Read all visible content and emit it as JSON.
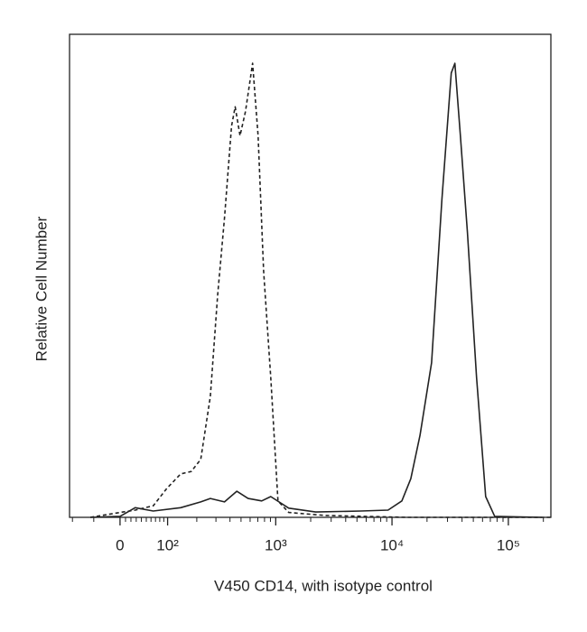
{
  "chart_data": {
    "type": "line",
    "xlabel": "V450 CD14, with isotype control",
    "ylabel": "Relative Cell Number",
    "xscale": "biexponential",
    "xlim": [
      -108,
      232000
    ],
    "xticks": [
      {
        "value": 0,
        "label": "0"
      },
      {
        "value": 100,
        "label": "10²"
      },
      {
        "value": 1000,
        "label": "10³"
      },
      {
        "value": 10000,
        "label": "10⁴"
      },
      {
        "value": 100000,
        "label": "10⁵"
      }
    ],
    "xminorticks": [
      -100,
      -50,
      10,
      20,
      30,
      40,
      50,
      60,
      70,
      80,
      90,
      200,
      300,
      400,
      500,
      600,
      700,
      800,
      900,
      2000,
      3000,
      4000,
      5000,
      6000,
      7000,
      8000,
      9000,
      20000,
      30000,
      40000,
      50000,
      60000,
      70000,
      80000,
      90000,
      200000
    ],
    "ylim": [
      0,
      100
    ],
    "series": [
      {
        "linestyle": "dashed",
        "color": "#222222",
        "x": [
          -57,
          0,
          28,
          65,
          98,
          139,
          177,
          218,
          267,
          311,
          358,
          413,
          444,
          490,
          547,
          630,
          704,
          785,
          905,
          1045,
          1295,
          2650,
          13290,
          232000
        ],
        "values": [
          0,
          1,
          1.5,
          2.4,
          6,
          9,
          9.5,
          12,
          25,
          46,
          62,
          81,
          85,
          79,
          84,
          94,
          79,
          51,
          29,
          3.4,
          1,
          0.4,
          0,
          0
        ]
      },
      {
        "linestyle": "solid",
        "color": "#222222",
        "x": [
          -57,
          0,
          28,
          65,
          139,
          218,
          267,
          358,
          459,
          576,
          756,
          905,
          1295,
          2206,
          5390,
          9250,
          12150,
          14500,
          17400,
          21900,
          26900,
          32300,
          34700,
          38700,
          44500,
          53300,
          63800,
          76400,
          193000
        ],
        "values": [
          0,
          0.2,
          2,
          1.3,
          2,
          3.2,
          3.9,
          3.2,
          5.4,
          3.9,
          3.4,
          4.3,
          1.9,
          1.1,
          1.3,
          1.5,
          3.4,
          8,
          17,
          32,
          66,
          92,
          94,
          79,
          59,
          29,
          4.3,
          0.2,
          0
        ]
      }
    ]
  }
}
